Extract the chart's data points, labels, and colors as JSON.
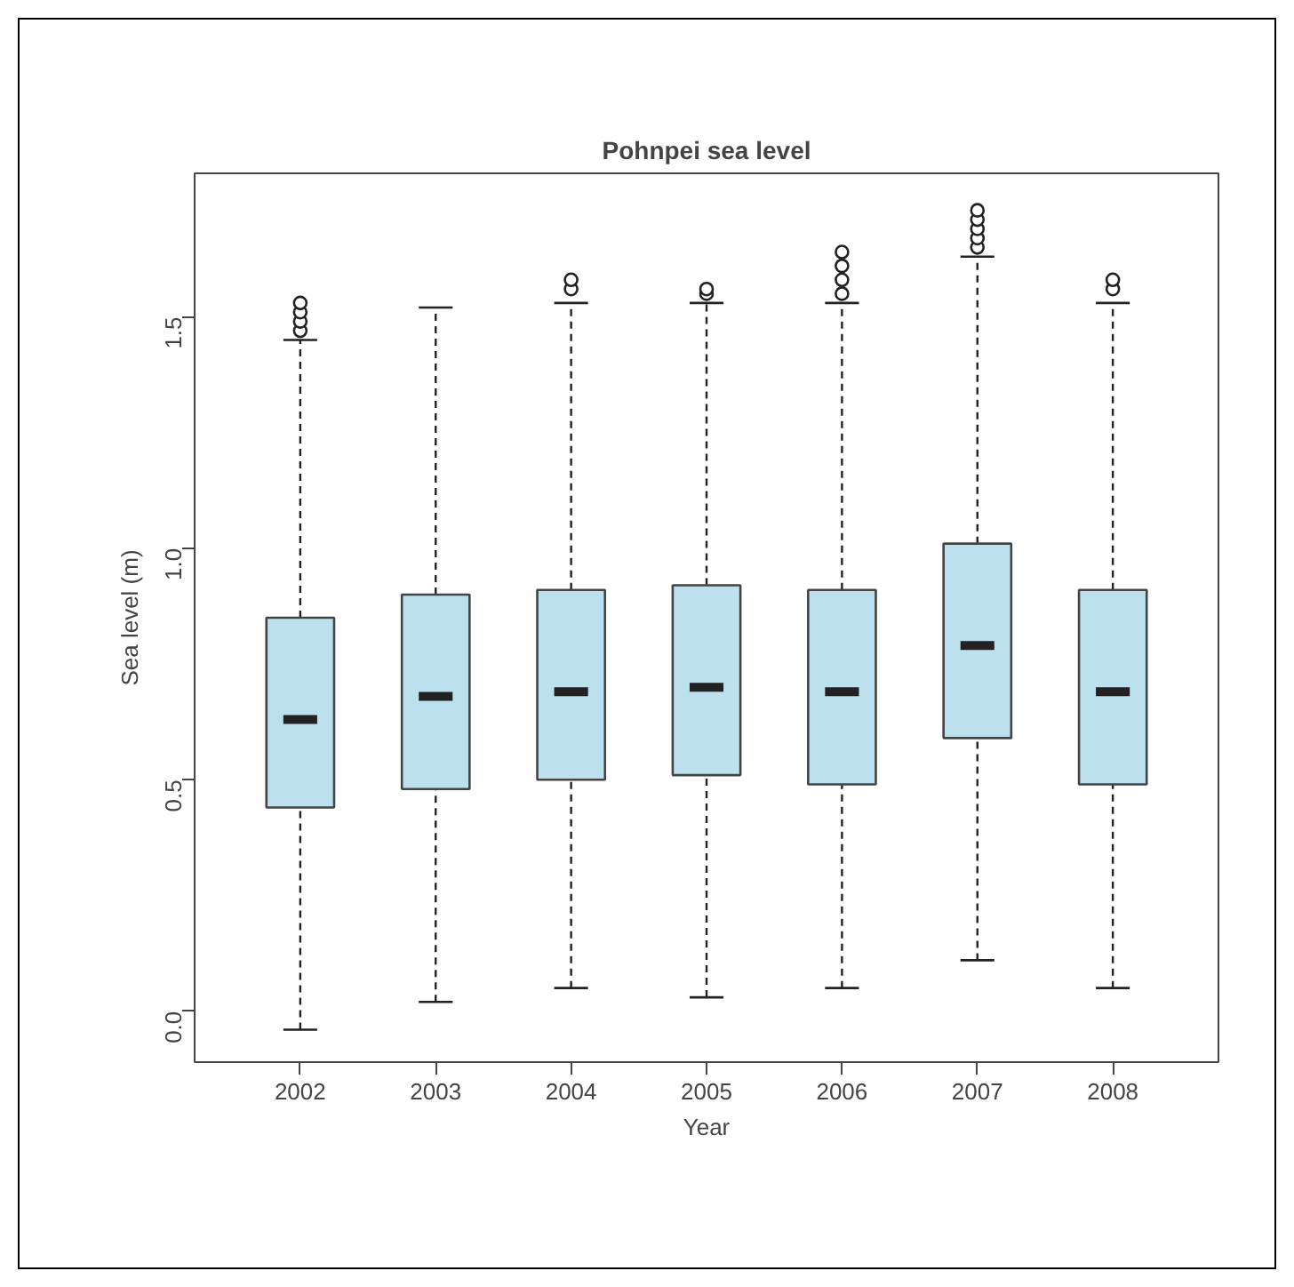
{
  "chart_data": {
    "type": "box",
    "title": "Pohnpei sea level",
    "xlabel": "Year",
    "ylabel": "Sea level (m)",
    "categories": [
      "2002",
      "2003",
      "2004",
      "2005",
      "2006",
      "2007",
      "2008"
    ],
    "color": "#bde0ee",
    "boxes": [
      {
        "low": -0.04,
        "q1": 0.44,
        "median": 0.63,
        "q3": 0.85,
        "high": 1.45,
        "outliers": [
          1.47,
          1.49,
          1.51,
          1.53
        ]
      },
      {
        "low": 0.02,
        "q1": 0.48,
        "median": 0.68,
        "q3": 0.9,
        "high": 1.52
      },
      {
        "low": 0.05,
        "q1": 0.5,
        "median": 0.69,
        "q3": 0.91,
        "high": 1.53,
        "outliers": [
          1.56,
          1.58
        ]
      },
      {
        "low": 0.03,
        "q1": 0.51,
        "median": 0.7,
        "q3": 0.92,
        "high": 1.53,
        "outliers": [
          1.55,
          1.56
        ]
      },
      {
        "low": 0.05,
        "q1": 0.49,
        "median": 0.69,
        "q3": 0.91,
        "high": 1.53,
        "outliers": [
          1.55,
          1.58,
          1.61,
          1.64
        ]
      },
      {
        "low": 0.11,
        "q1": 0.59,
        "median": 0.79,
        "q3": 1.01,
        "high": 1.63,
        "outliers": [
          1.65,
          1.67,
          1.69,
          1.71,
          1.73
        ]
      },
      {
        "low": 0.05,
        "q1": 0.49,
        "median": 0.69,
        "q3": 0.91,
        "high": 1.53,
        "outliers": [
          1.56,
          1.58
        ]
      }
    ],
    "ylim": [
      -0.11,
      1.81
    ],
    "yticks": [
      {
        "value": 0,
        "label": "0.0"
      },
      {
        "value": 0.5,
        "label": "0.5"
      },
      {
        "value": 1,
        "label": "1.0"
      },
      {
        "value": 1.5,
        "label": "1.5"
      }
    ],
    "grid": false
  }
}
